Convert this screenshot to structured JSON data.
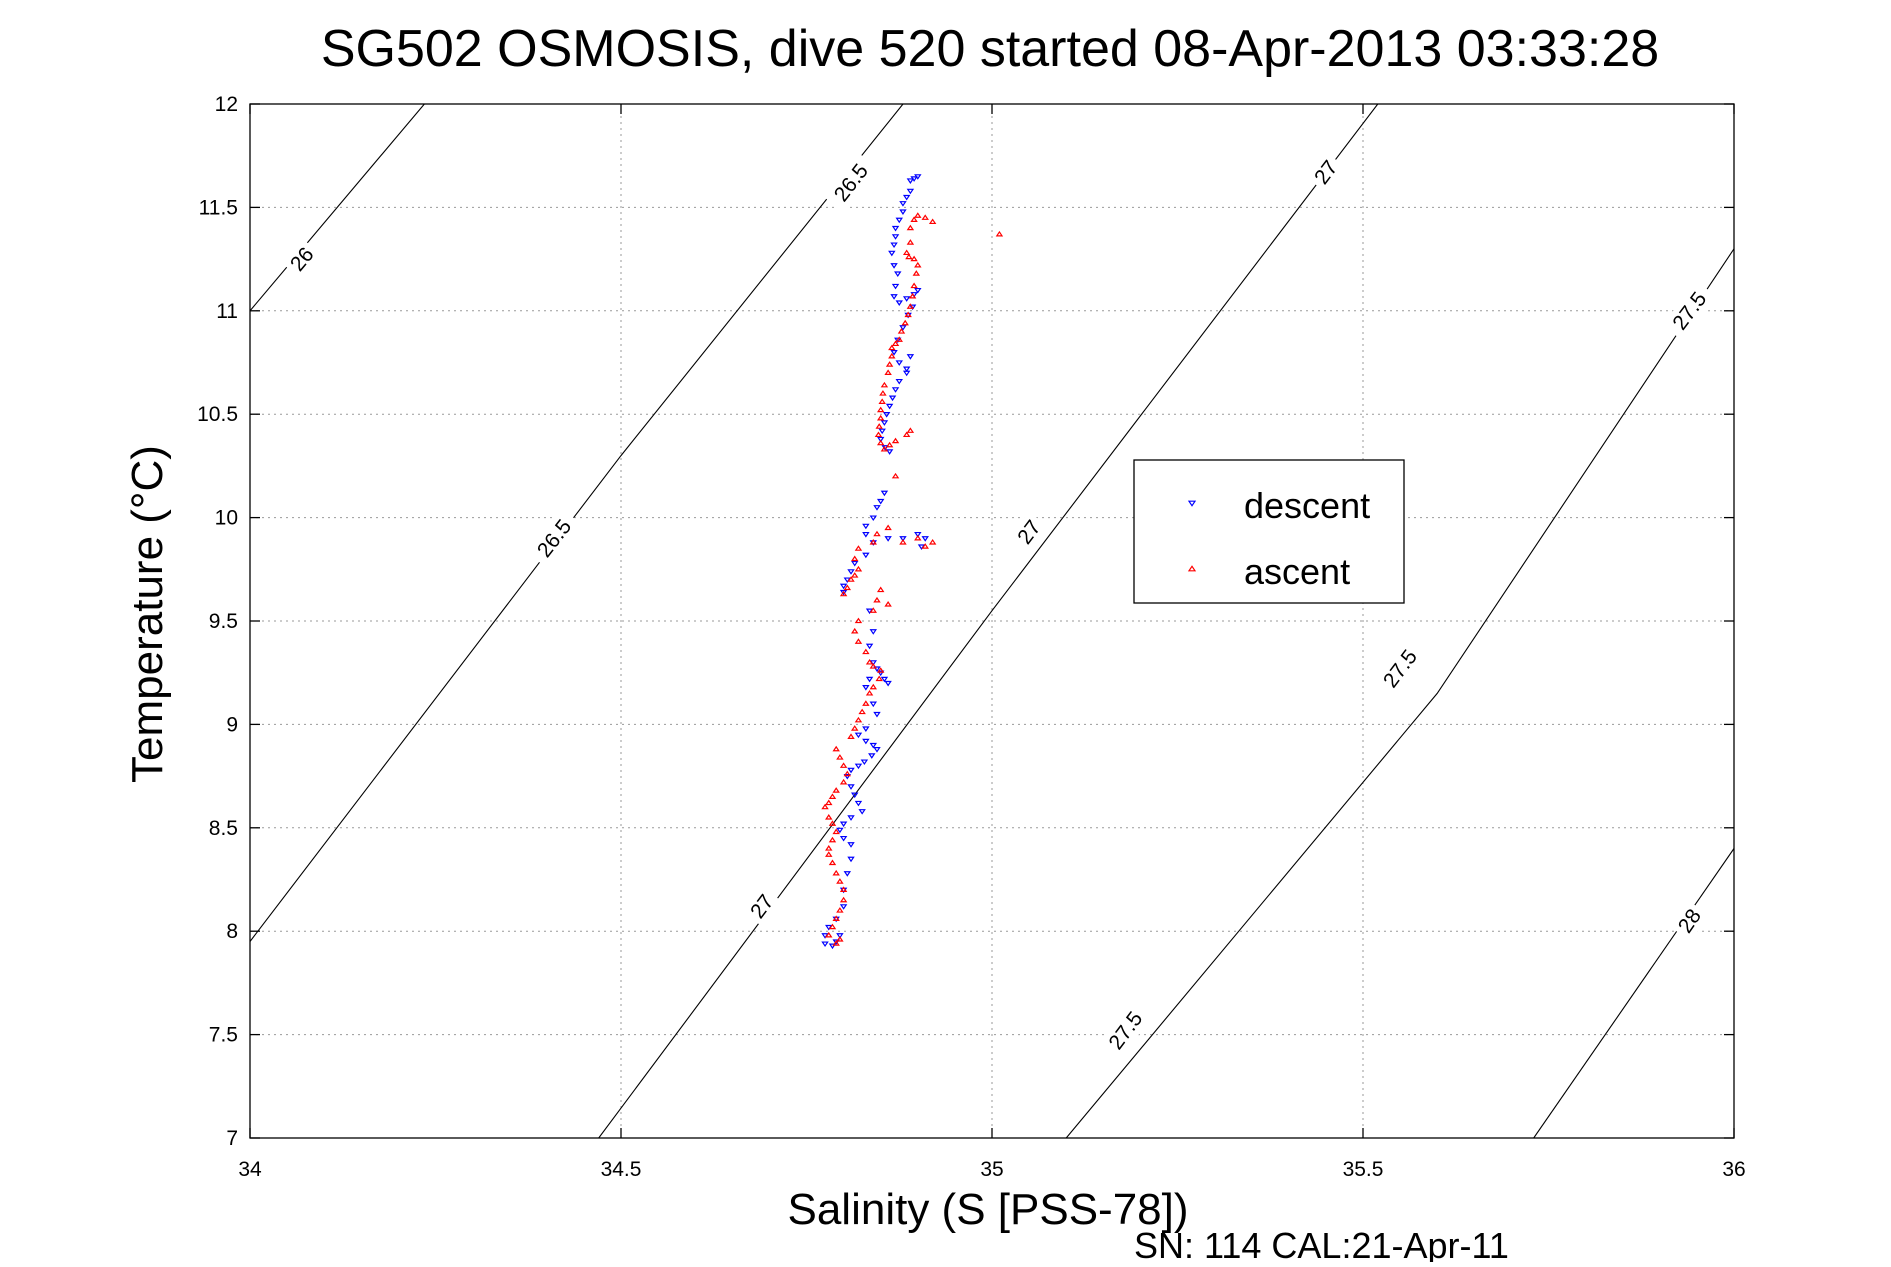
{
  "chart_data": {
    "type": "scatter",
    "title": "SG502 OSMOSIS, dive 520 started 08-Apr-2013 03:33:28",
    "xlabel": "Salinity (S [PSS-78])",
    "ylabel": "Temperature (°C)",
    "footer": "SN: 114  CAL:21-Apr-11",
    "xlim": [
      34,
      36
    ],
    "ylim": [
      7,
      12
    ],
    "xticks": [
      "34",
      "34.5",
      "35",
      "35.5",
      "36"
    ],
    "yticks": [
      "7",
      "7.5",
      "8",
      "8.5",
      "9",
      "9.5",
      "10",
      "10.5",
      "11",
      "11.5",
      "12"
    ],
    "grid": true,
    "legend_position": "right",
    "contours": [
      {
        "label": "26",
        "sigma": 26,
        "points": [
          [
            34.0,
            11.0
          ],
          [
            34.235,
            12.0
          ]
        ],
        "labels_at": [
          [
            34.07,
            11.25
          ]
        ]
      },
      {
        "label": "26.5",
        "sigma": 26.5,
        "points": [
          [
            34.0,
            7.95
          ],
          [
            34.5,
            10.3
          ],
          [
            34.88,
            12.0
          ]
        ],
        "labels_at": [
          [
            34.41,
            9.9
          ],
          [
            34.81,
            11.62
          ]
        ]
      },
      {
        "label": "27",
        "sigma": 27,
        "points": [
          [
            34.47,
            7.0
          ],
          [
            35.0,
            9.55
          ],
          [
            35.52,
            12.0
          ]
        ],
        "labels_at": [
          [
            34.69,
            8.12
          ],
          [
            35.05,
            9.93
          ],
          [
            35.45,
            11.67
          ]
        ]
      },
      {
        "label": "27.5",
        "sigma": 27.5,
        "points": [
          [
            35.1,
            7.0
          ],
          [
            35.6,
            9.15
          ],
          [
            36.0,
            11.3
          ]
        ],
        "labels_at": [
          [
            35.18,
            7.52
          ],
          [
            35.55,
            9.27
          ],
          [
            35.94,
            11.0
          ]
        ]
      },
      {
        "label": "28",
        "sigma": 28,
        "points": [
          [
            35.73,
            7.0
          ],
          [
            36.0,
            8.4
          ]
        ],
        "labels_at": [
          [
            35.94,
            8.05
          ]
        ]
      }
    ],
    "series": [
      {
        "name": "descent",
        "color": "#0000ff",
        "marker": "triangle-down",
        "points": [
          [
            34.9,
            11.65
          ],
          [
            34.89,
            11.63
          ],
          [
            34.895,
            11.64
          ],
          [
            34.89,
            11.58
          ],
          [
            34.885,
            11.55
          ],
          [
            34.88,
            11.52
          ],
          [
            34.88,
            11.48
          ],
          [
            34.875,
            11.44
          ],
          [
            34.87,
            11.4
          ],
          [
            34.87,
            11.36
          ],
          [
            34.868,
            11.32
          ],
          [
            34.865,
            11.28
          ],
          [
            34.868,
            11.22
          ],
          [
            34.873,
            11.18
          ],
          [
            34.87,
            11.12
          ],
          [
            34.868,
            11.07
          ],
          [
            34.875,
            11.04
          ],
          [
            34.885,
            11.06
          ],
          [
            34.895,
            11.08
          ],
          [
            34.9,
            11.1
          ],
          [
            34.893,
            11.02
          ],
          [
            34.887,
            10.98
          ],
          [
            34.88,
            10.92
          ],
          [
            34.873,
            10.86
          ],
          [
            34.868,
            10.8
          ],
          [
            34.875,
            10.75
          ],
          [
            34.885,
            10.72
          ],
          [
            34.89,
            10.78
          ],
          [
            34.885,
            10.7
          ],
          [
            34.875,
            10.66
          ],
          [
            34.87,
            10.62
          ],
          [
            34.866,
            10.58
          ],
          [
            34.862,
            10.54
          ],
          [
            34.858,
            10.5
          ],
          [
            34.855,
            10.46
          ],
          [
            34.852,
            10.42
          ],
          [
            34.85,
            10.38
          ],
          [
            34.856,
            10.34
          ],
          [
            34.862,
            10.32
          ],
          [
            34.855,
            10.12
          ],
          [
            34.85,
            10.08
          ],
          [
            34.845,
            10.05
          ],
          [
            34.84,
            10.0
          ],
          [
            34.83,
            9.96
          ],
          [
            34.83,
            9.92
          ],
          [
            34.84,
            9.88
          ],
          [
            34.86,
            9.9
          ],
          [
            34.88,
            9.9
          ],
          [
            34.9,
            9.92
          ],
          [
            34.91,
            9.9
          ],
          [
            34.905,
            9.86
          ],
          [
            34.83,
            9.82
          ],
          [
            34.815,
            9.78
          ],
          [
            34.81,
            9.74
          ],
          [
            34.805,
            9.7
          ],
          [
            34.8,
            9.67
          ],
          [
            34.8,
            9.64
          ],
          [
            34.835,
            9.55
          ],
          [
            34.84,
            9.45
          ],
          [
            34.835,
            9.38
          ],
          [
            34.84,
            9.3
          ],
          [
            34.845,
            9.27
          ],
          [
            34.85,
            9.25
          ],
          [
            34.855,
            9.22
          ],
          [
            34.86,
            9.2
          ],
          [
            34.835,
            9.22
          ],
          [
            34.83,
            9.18
          ],
          [
            34.84,
            9.1
          ],
          [
            34.845,
            9.05
          ],
          [
            34.83,
            8.98
          ],
          [
            34.82,
            8.95
          ],
          [
            34.83,
            8.92
          ],
          [
            34.84,
            8.9
          ],
          [
            34.845,
            8.88
          ],
          [
            34.838,
            8.85
          ],
          [
            34.828,
            8.82
          ],
          [
            34.82,
            8.8
          ],
          [
            34.81,
            8.78
          ],
          [
            34.805,
            8.75
          ],
          [
            34.81,
            8.7
          ],
          [
            34.815,
            8.66
          ],
          [
            34.82,
            8.62
          ],
          [
            34.825,
            8.58
          ],
          [
            34.81,
            8.55
          ],
          [
            34.8,
            8.52
          ],
          [
            34.795,
            8.49
          ],
          [
            34.8,
            8.45
          ],
          [
            34.81,
            8.42
          ],
          [
            34.81,
            8.35
          ],
          [
            34.805,
            8.28
          ],
          [
            34.8,
            8.2
          ],
          [
            34.8,
            8.12
          ],
          [
            34.79,
            8.06
          ],
          [
            34.78,
            8.02
          ],
          [
            34.775,
            7.98
          ],
          [
            34.775,
            7.94
          ],
          [
            34.785,
            7.93
          ],
          [
            34.79,
            7.95
          ],
          [
            34.795,
            7.98
          ]
        ]
      },
      {
        "name": "ascent",
        "color": "#ff0000",
        "marker": "triangle-up",
        "points": [
          [
            35.01,
            11.37
          ],
          [
            34.92,
            11.43
          ],
          [
            34.91,
            11.45
          ],
          [
            34.9,
            11.46
          ],
          [
            34.895,
            11.44
          ],
          [
            34.89,
            11.4
          ],
          [
            34.89,
            11.33
          ],
          [
            34.885,
            11.28
          ],
          [
            34.888,
            11.26
          ],
          [
            34.895,
            11.25
          ],
          [
            34.9,
            11.22
          ],
          [
            34.898,
            11.18
          ],
          [
            34.895,
            11.12
          ],
          [
            34.893,
            11.07
          ],
          [
            34.89,
            11.02
          ],
          [
            34.887,
            10.98
          ],
          [
            34.883,
            10.94
          ],
          [
            34.878,
            10.9
          ],
          [
            34.875,
            10.86
          ],
          [
            34.87,
            10.84
          ],
          [
            34.865,
            10.82
          ],
          [
            34.865,
            10.78
          ],
          [
            34.862,
            10.74
          ],
          [
            34.86,
            10.7
          ],
          [
            34.855,
            10.64
          ],
          [
            34.853,
            10.6
          ],
          [
            34.852,
            10.56
          ],
          [
            34.85,
            10.52
          ],
          [
            34.85,
            10.48
          ],
          [
            34.848,
            10.44
          ],
          [
            34.847,
            10.4
          ],
          [
            34.85,
            10.36
          ],
          [
            34.855,
            10.33
          ],
          [
            34.862,
            10.35
          ],
          [
            34.87,
            10.37
          ],
          [
            34.885,
            10.4
          ],
          [
            34.89,
            10.42
          ],
          [
            34.87,
            10.2
          ],
          [
            34.86,
            9.95
          ],
          [
            34.845,
            9.92
          ],
          [
            34.84,
            9.88
          ],
          [
            34.88,
            9.88
          ],
          [
            34.9,
            9.9
          ],
          [
            34.91,
            9.86
          ],
          [
            34.92,
            9.88
          ],
          [
            34.82,
            9.85
          ],
          [
            34.815,
            9.8
          ],
          [
            34.82,
            9.75
          ],
          [
            34.815,
            9.72
          ],
          [
            34.81,
            9.7
          ],
          [
            34.805,
            9.66
          ],
          [
            34.8,
            9.63
          ],
          [
            34.85,
            9.65
          ],
          [
            34.845,
            9.6
          ],
          [
            34.86,
            9.58
          ],
          [
            34.84,
            9.55
          ],
          [
            34.82,
            9.5
          ],
          [
            34.815,
            9.45
          ],
          [
            34.82,
            9.4
          ],
          [
            34.83,
            9.35
          ],
          [
            34.835,
            9.3
          ],
          [
            34.84,
            9.28
          ],
          [
            34.85,
            9.26
          ],
          [
            34.848,
            9.22
          ],
          [
            34.84,
            9.18
          ],
          [
            34.835,
            9.15
          ],
          [
            34.83,
            9.1
          ],
          [
            34.825,
            9.06
          ],
          [
            34.82,
            9.02
          ],
          [
            34.815,
            8.98
          ],
          [
            34.81,
            8.94
          ],
          [
            34.79,
            8.88
          ],
          [
            34.795,
            8.84
          ],
          [
            34.8,
            8.8
          ],
          [
            34.805,
            8.76
          ],
          [
            34.8,
            8.72
          ],
          [
            34.79,
            8.68
          ],
          [
            34.785,
            8.65
          ],
          [
            34.78,
            8.62
          ],
          [
            34.775,
            8.6
          ],
          [
            34.78,
            8.55
          ],
          [
            34.785,
            8.52
          ],
          [
            34.79,
            8.48
          ],
          [
            34.785,
            8.44
          ],
          [
            34.78,
            8.4
          ],
          [
            34.78,
            8.37
          ],
          [
            34.785,
            8.33
          ],
          [
            34.79,
            8.28
          ],
          [
            34.795,
            8.24
          ],
          [
            34.8,
            8.2
          ],
          [
            34.8,
            8.15
          ],
          [
            34.795,
            8.1
          ],
          [
            34.79,
            8.06
          ],
          [
            34.785,
            8.02
          ],
          [
            34.78,
            7.98
          ],
          [
            34.79,
            7.94
          ],
          [
            34.795,
            7.96
          ]
        ]
      }
    ]
  }
}
